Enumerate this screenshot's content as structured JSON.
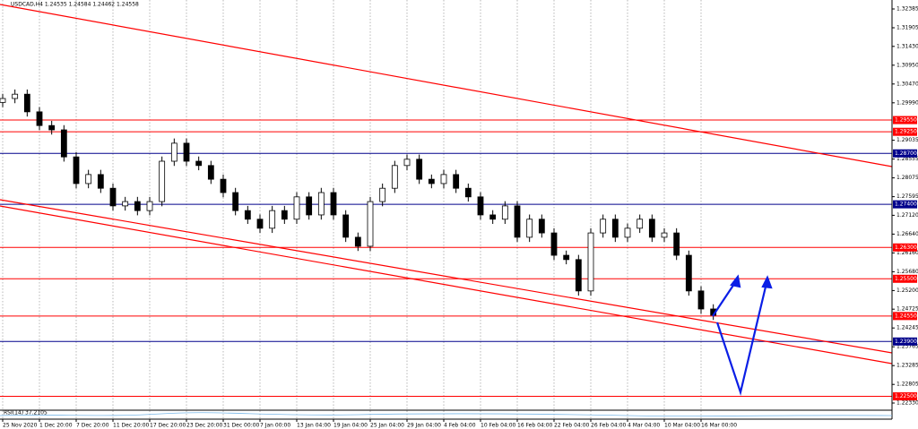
{
  "chart_data": {
    "type": "candlestick",
    "title": "USDCAD,H4  1.24535 1.24584 1.24462 1.24558",
    "indicator_label": "RSI(14) 37.2105",
    "open": [
      1.3,
      1.301,
      1.3021,
      1.2976,
      1.2941,
      1.293,
      1.2861,
      1.2793,
      1.2816,
      1.2781,
      1.2736,
      1.2747,
      1.2724,
      1.2747,
      1.285,
      1.2896,
      1.285,
      1.2839,
      1.2804,
      1.277,
      1.2724,
      1.2702,
      1.2679,
      1.2724,
      1.2702,
      1.2759,
      1.2713,
      1.277,
      1.2713,
      1.2656,
      1.2633,
      1.2747,
      1.2781,
      1.2839,
      1.2855,
      1.2804,
      1.2793,
      1.2816,
      1.2781,
      1.2759,
      1.2713,
      1.2702,
      1.2736,
      1.2656,
      1.2702,
      1.2667,
      1.261,
      1.2599,
      1.2519,
      1.2667,
      1.2702,
      1.2656,
      1.2679,
      1.2702,
      1.2656,
      1.2667,
      1.261,
      1.2519,
      1.2473
    ],
    "high": [
      1.3022,
      1.3033,
      1.3033,
      1.2988,
      1.2953,
      1.2942,
      1.2873,
      1.2828,
      1.2828,
      1.2793,
      1.2759,
      1.2759,
      1.2759,
      1.2862,
      1.2908,
      1.2908,
      1.2862,
      1.2851,
      1.2816,
      1.2782,
      1.2736,
      1.2714,
      1.2736,
      1.2736,
      1.2771,
      1.2771,
      1.2782,
      1.2782,
      1.2725,
      1.2668,
      1.2759,
      1.2793,
      1.2851,
      1.2867,
      1.2867,
      1.2816,
      1.2828,
      1.2828,
      1.2793,
      1.2771,
      1.2725,
      1.2748,
      1.2748,
      1.2714,
      1.2714,
      1.2679,
      1.2622,
      1.2611,
      1.2679,
      1.2714,
      1.2714,
      1.2691,
      1.2714,
      1.2714,
      1.2679,
      1.2679,
      1.2622,
      1.2531,
      1.2485
    ],
    "low": [
      1.2988,
      1.2998,
      1.2964,
      1.2929,
      1.2918,
      1.2849,
      1.2781,
      1.2781,
      1.2769,
      1.2724,
      1.2724,
      1.2712,
      1.2712,
      1.2735,
      1.2838,
      1.2838,
      1.2827,
      1.2792,
      1.2758,
      1.2712,
      1.269,
      1.2667,
      1.2667,
      1.269,
      1.269,
      1.2701,
      1.2701,
      1.2701,
      1.2644,
      1.2621,
      1.2621,
      1.2735,
      1.2769,
      1.2827,
      1.2792,
      1.2781,
      1.2781,
      1.2769,
      1.2747,
      1.2701,
      1.269,
      1.269,
      1.2644,
      1.2644,
      1.2655,
      1.2598,
      1.2587,
      1.2507,
      1.2507,
      1.2655,
      1.2644,
      1.2644,
      1.2667,
      1.2644,
      1.2644,
      1.2598,
      1.2507,
      1.2461,
      1.2445
    ],
    "close": [
      1.301,
      1.3021,
      1.2976,
      1.2941,
      1.293,
      1.2861,
      1.2793,
      1.2816,
      1.2781,
      1.2736,
      1.2747,
      1.2724,
      1.2747,
      1.285,
      1.2896,
      1.285,
      1.2839,
      1.2804,
      1.277,
      1.2724,
      1.2702,
      1.2679,
      1.2724,
      1.2702,
      1.2759,
      1.2713,
      1.277,
      1.2713,
      1.2656,
      1.2633,
      1.2747,
      1.2781,
      1.2839,
      1.2855,
      1.2804,
      1.2793,
      1.2816,
      1.2781,
      1.2759,
      1.2713,
      1.2702,
      1.2736,
      1.2656,
      1.2702,
      1.2667,
      1.261,
      1.2599,
      1.2519,
      1.2667,
      1.2702,
      1.2656,
      1.2679,
      1.2702,
      1.2656,
      1.2667,
      1.261,
      1.2519,
      1.2473,
      1.2457
    ],
    "xticks": [
      {
        "value": 0,
        "label": "25 Nov 2020"
      },
      {
        "value": 3,
        "label": "1 Dec 20:00"
      },
      {
        "value": 6,
        "label": "7 Dec 20:00"
      },
      {
        "value": 9,
        "label": "11 Dec 20:00"
      },
      {
        "value": 12,
        "label": "17 Dec 20:00"
      },
      {
        "value": 15,
        "label": "23 Dec 20:00"
      },
      {
        "value": 18,
        "label": "31 Dec 00:00"
      },
      {
        "value": 21,
        "label": "7 Jan 00:00"
      },
      {
        "value": 24,
        "label": "13 Jan 04:00"
      },
      {
        "value": 27,
        "label": "19 Jan 04:00"
      },
      {
        "value": 30,
        "label": "25 Jan 04:00"
      },
      {
        "value": 33,
        "label": "29 Jan 04:00"
      },
      {
        "value": 36,
        "label": "4 Feb 04:00"
      },
      {
        "value": 39,
        "label": "10 Feb 04:00"
      },
      {
        "value": 42,
        "label": "16 Feb 04:00"
      },
      {
        "value": 45,
        "label": "22 Feb 04:00"
      },
      {
        "value": 48,
        "label": "26 Feb 04:00"
      },
      {
        "value": 51,
        "label": "4 Mar 04:00"
      },
      {
        "value": 54,
        "label": "10 Mar 04:00"
      },
      {
        "value": 57,
        "label": "16 Mar 00:00"
      }
    ],
    "ylim": [
      1.2233,
      1.32385
    ],
    "yticks": [
      1.32385,
      1.31905,
      {
        "value": 1.3143,
        "label": "1.31430"
      },
      {
        "value": 1.3095,
        "label": "1.30950"
      },
      {
        "value": 1.3047,
        "label": "1.30470"
      },
      {
        "value": 1.2999,
        "label": "1.29990"
      },
      1.29035,
      1.28555,
      1.28075,
      1.27595,
      {
        "value": 1.2712,
        "label": "1.27120"
      },
      {
        "value": 1.2664,
        "label": "1.26640"
      },
      {
        "value": 1.2616,
        "label": "1.26160"
      },
      {
        "value": 1.2568,
        "label": "1.25680"
      },
      {
        "value": 1.252,
        "label": "1.25200"
      },
      1.24725,
      1.24245,
      1.23765,
      1.23285,
      1.22805,
      {
        "value": 1.2233,
        "label": "1.22330"
      }
    ],
    "levels": [
      {
        "value": 1.2955,
        "label": "1.29550",
        "color": "#ff0000"
      },
      {
        "value": 1.2925,
        "label": "1.29250",
        "color": "#ff0000"
      },
      {
        "value": 1.287,
        "label": "1.28700",
        "color": "#00008b"
      },
      {
        "value": 1.274,
        "label": "1.27400",
        "color": "#00008b"
      },
      {
        "value": 1.263,
        "label": "1.26300",
        "color": "#ff0000"
      },
      {
        "value": 1.255,
        "label": "1.25500",
        "color": "#ff0000"
      },
      {
        "value": 1.2455,
        "label": "1.24550",
        "color": "#ff0000"
      },
      {
        "value": 1.239,
        "label": "1.23900",
        "color": "#00008b"
      },
      {
        "value": 1.225,
        "label": "1.22500",
        "color": "#ff0000"
      }
    ],
    "grid": true
  }
}
